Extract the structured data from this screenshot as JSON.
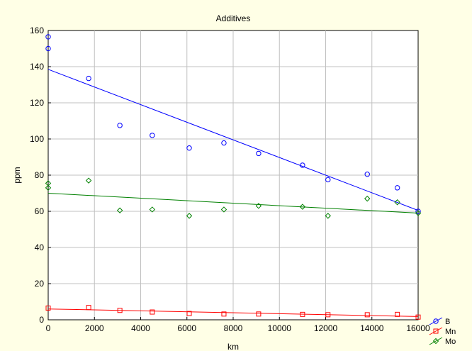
{
  "chart_data": {
    "type": "scatter",
    "title": "Additives",
    "xlabel": "km",
    "ylabel": "ppm",
    "xlim": [
      0,
      16000
    ],
    "ylim": [
      0,
      160
    ],
    "x_ticks": [
      0,
      2000,
      4000,
      6000,
      8000,
      10000,
      12000,
      14000,
      16000
    ],
    "y_ticks": [
      0,
      20,
      40,
      60,
      80,
      100,
      120,
      140,
      160
    ],
    "grid": true,
    "legend_position": "bottom-right",
    "series": [
      {
        "name": "B",
        "color": "#0000ff",
        "marker": "circle",
        "points": [
          [
            0,
            156.5
          ],
          [
            0,
            150
          ],
          [
            1750,
            133.5
          ],
          [
            3100,
            107.5
          ],
          [
            4500,
            102
          ],
          [
            6100,
            95
          ],
          [
            7600,
            97.8
          ],
          [
            9100,
            92
          ],
          [
            11000,
            85.5
          ],
          [
            12100,
            77.5
          ],
          [
            13800,
            80.5
          ],
          [
            15100,
            73
          ],
          [
            16000,
            60
          ]
        ],
        "fit": [
          [
            0,
            138.5
          ],
          [
            16000,
            60.5
          ]
        ]
      },
      {
        "name": "Mn",
        "color": "#ff0000",
        "marker": "square",
        "points": [
          [
            0,
            6.5
          ],
          [
            1750,
            6.8
          ],
          [
            3100,
            5.2
          ],
          [
            4500,
            4.3
          ],
          [
            6100,
            3.5
          ],
          [
            7600,
            3.2
          ],
          [
            9100,
            3.2
          ],
          [
            11000,
            3.0
          ],
          [
            12100,
            2.8
          ],
          [
            13800,
            2.8
          ],
          [
            15100,
            3.0
          ],
          [
            16000,
            1.5
          ]
        ],
        "fit": [
          [
            0,
            6
          ],
          [
            16000,
            1.8
          ]
        ]
      },
      {
        "name": "Mo",
        "color": "#008000",
        "marker": "diamond",
        "points": [
          [
            0,
            75.5
          ],
          [
            0,
            73
          ],
          [
            1750,
            77
          ],
          [
            3100,
            60.5
          ],
          [
            4500,
            61
          ],
          [
            6100,
            57.5
          ],
          [
            7600,
            61
          ],
          [
            9100,
            63
          ],
          [
            11000,
            62.5
          ],
          [
            12100,
            57.5
          ],
          [
            13800,
            67
          ],
          [
            15100,
            65
          ],
          [
            16000,
            59
          ]
        ],
        "fit": [
          [
            0,
            70
          ],
          [
            16000,
            59
          ]
        ]
      }
    ]
  }
}
